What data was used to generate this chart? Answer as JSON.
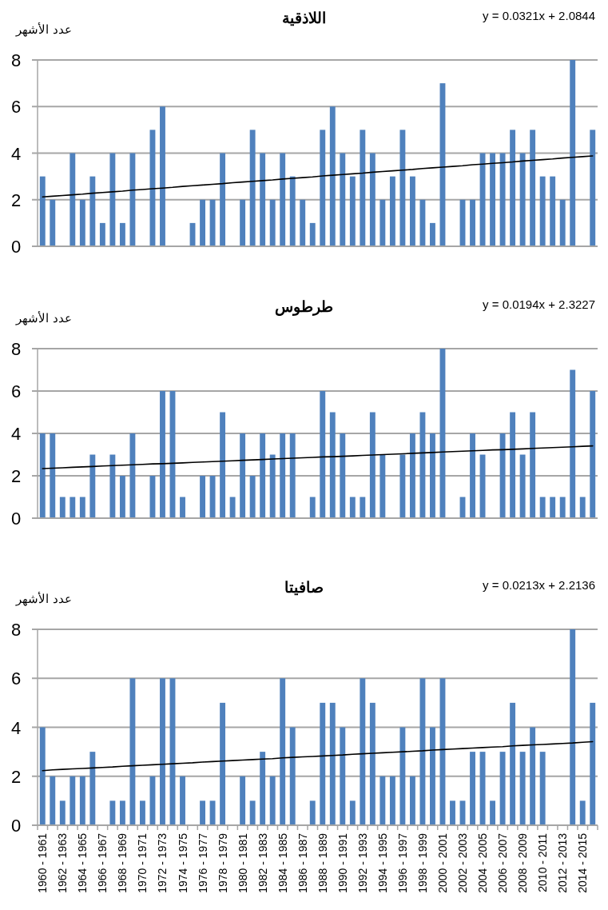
{
  "chart_data": [
    {
      "type": "bar",
      "title": "اللاذقية",
      "ylabel": "عدد الأشهر",
      "annotations": [
        "y = 0.0321x + 2.0844"
      ],
      "grid": "y",
      "tick_labels": "y",
      "categories": [
        null,
        null,
        null,
        null,
        null,
        null,
        null,
        null,
        null,
        null,
        null,
        null,
        null,
        null,
        null,
        null,
        null,
        null,
        null,
        null,
        null,
        null,
        null,
        null,
        null,
        null,
        null,
        null,
        null,
        null,
        null,
        null,
        null,
        null,
        null,
        null,
        null,
        null,
        null,
        null,
        null,
        null,
        null,
        null,
        null,
        null,
        null,
        null,
        null,
        null,
        null,
        null,
        null,
        null,
        null,
        null
      ],
      "ylim": [
        0,
        8
      ],
      "yticks": [
        0,
        2,
        4,
        6,
        8
      ],
      "series": [
        {
          "color": "#4f81bd",
          "values": [
            3,
            2,
            0,
            4,
            2,
            3,
            1,
            4,
            1,
            4,
            0,
            5,
            6,
            0,
            0,
            1,
            2,
            2,
            4,
            0,
            2,
            5,
            4,
            2,
            4,
            3,
            2,
            1,
            5,
            6,
            4,
            3,
            5,
            4,
            2,
            3,
            5,
            3,
            2,
            1,
            7,
            0,
            2,
            2,
            4,
            4,
            4,
            5,
            4,
            5,
            3,
            3,
            2,
            8,
            0,
            5
          ]
        },
        {
          "type": "line",
          "color": "#000000",
          "values": [
            2.12,
            2.15,
            2.18,
            2.21,
            2.24,
            2.28,
            2.31,
            2.34,
            2.37,
            2.41,
            2.44,
            2.47,
            2.5,
            2.53,
            2.57,
            2.6,
            2.63,
            2.66,
            2.69,
            2.73,
            2.76,
            2.79,
            2.82,
            2.85,
            2.89,
            2.92,
            2.95,
            2.98,
            3.02,
            3.05,
            3.08,
            3.11,
            3.14,
            3.18,
            3.21,
            3.24,
            3.27,
            3.3,
            3.34,
            3.37,
            3.4,
            3.43,
            3.46,
            3.5,
            3.53,
            3.56,
            3.59,
            3.62,
            3.66,
            3.69,
            3.72,
            3.75,
            3.79,
            3.82,
            3.85,
            3.88
          ]
        }
      ]
    },
    {
      "type": "bar",
      "title": "طرطوس",
      "ylabel": "عدد الأشهر",
      "annotations": [
        "y = 0.0194x + 2.3227"
      ],
      "grid": "y",
      "tick_labels": "y",
      "categories": [
        null,
        null,
        null,
        null,
        null,
        null,
        null,
        null,
        null,
        null,
        null,
        null,
        null,
        null,
        null,
        null,
        null,
        null,
        null,
        null,
        null,
        null,
        null,
        null,
        null,
        null,
        null,
        null,
        null,
        null,
        null,
        null,
        null,
        null,
        null,
        null,
        null,
        null,
        null,
        null,
        null,
        null,
        null,
        null,
        null,
        null,
        null,
        null,
        null,
        null,
        null,
        null,
        null,
        null,
        null,
        null
      ],
      "ylim": [
        0,
        8
      ],
      "yticks": [
        0,
        2,
        4,
        6,
        8
      ],
      "series": [
        {
          "color": "#4f81bd",
          "values": [
            4,
            4,
            1,
            1,
            1,
            3,
            0,
            3,
            2,
            4,
            0,
            2,
            6,
            6,
            1,
            0,
            2,
            2,
            5,
            1,
            4,
            2,
            4,
            3,
            4,
            4,
            0,
            1,
            6,
            5,
            4,
            1,
            1,
            5,
            3,
            0,
            3,
            4,
            5,
            4,
            8,
            0,
            1,
            4,
            3,
            0,
            4,
            5,
            3,
            5,
            1,
            1,
            1,
            7,
            1,
            6
          ]
        },
        {
          "type": "line",
          "color": "#000000",
          "values": [
            2.34,
            2.36,
            2.38,
            2.4,
            2.42,
            2.44,
            2.46,
            2.48,
            2.5,
            2.52,
            2.54,
            2.56,
            2.57,
            2.59,
            2.61,
            2.63,
            2.65,
            2.67,
            2.69,
            2.71,
            2.73,
            2.75,
            2.77,
            2.79,
            2.81,
            2.83,
            2.85,
            2.87,
            2.89,
            2.9,
            2.92,
            2.94,
            2.96,
            2.98,
            3.0,
            3.02,
            3.04,
            3.06,
            3.08,
            3.1,
            3.12,
            3.14,
            3.16,
            3.18,
            3.2,
            3.22,
            3.23,
            3.25,
            3.27,
            3.29,
            3.31,
            3.33,
            3.35,
            3.37,
            3.39,
            3.41
          ]
        }
      ]
    },
    {
      "type": "bar",
      "title": "صافيتا",
      "ylabel": "عدد الأشهر",
      "annotations": [
        "y = 0.0213x + 2.2136"
      ],
      "grid": "y",
      "categories": [
        "1960 - 1961",
        null,
        "1962 - 1963",
        null,
        "1964 - 1965",
        null,
        "1966 - 1967",
        null,
        "1968 - 1969",
        null,
        "1970 - 1971",
        null,
        "1972 - 1973",
        null,
        "1974 - 1975",
        null,
        "1976 - 1977",
        null,
        "1978 - 1979",
        null,
        "1980 - 1981",
        null,
        "1982 - 1983",
        null,
        "1984 - 1985",
        null,
        "1986 - 1987",
        null,
        "1988 - 1989",
        null,
        "1990 - 1991",
        null,
        "1992 - 1993",
        null,
        "1994 - 1995",
        null,
        "1996 - 1997",
        null,
        "1998 - 1999",
        null,
        "2000 - 2001",
        null,
        "2002 - 2003",
        null,
        "2004 - 2005",
        null,
        "2006 - 2007",
        null,
        "2008 - 2009",
        null,
        "2010 - 2011",
        null,
        "2012 - 2013",
        null,
        "2014 - 2015",
        null
      ],
      "ylim": [
        0,
        8
      ],
      "yticks": [
        0,
        2,
        4,
        6,
        8
      ],
      "series": [
        {
          "color": "#4f81bd",
          "values": [
            4,
            2,
            1,
            2,
            2,
            3,
            0,
            1,
            1,
            6,
            1,
            2,
            6,
            6,
            2,
            0,
            1,
            1,
            5,
            0,
            2,
            1,
            3,
            2,
            6,
            4,
            0,
            1,
            5,
            5,
            4,
            1,
            6,
            5,
            2,
            2,
            4,
            2,
            6,
            4,
            6,
            1,
            1,
            3,
            3,
            1,
            3,
            5,
            3,
            4,
            3,
            0,
            0,
            8,
            1,
            5
          ]
        },
        {
          "type": "line",
          "color": "#000000",
          "values": [
            2.23,
            2.26,
            2.28,
            2.3,
            2.32,
            2.34,
            2.36,
            2.38,
            2.41,
            2.43,
            2.45,
            2.47,
            2.49,
            2.51,
            2.53,
            2.55,
            2.58,
            2.6,
            2.62,
            2.64,
            2.66,
            2.68,
            2.7,
            2.72,
            2.75,
            2.77,
            2.79,
            2.81,
            2.83,
            2.85,
            2.87,
            2.9,
            2.92,
            2.94,
            2.96,
            2.98,
            3.0,
            3.02,
            3.04,
            3.07,
            3.09,
            3.11,
            3.13,
            3.15,
            3.17,
            3.19,
            3.21,
            3.24,
            3.26,
            3.28,
            3.3,
            3.32,
            3.34,
            3.36,
            3.39,
            3.41
          ]
        }
      ]
    }
  ]
}
